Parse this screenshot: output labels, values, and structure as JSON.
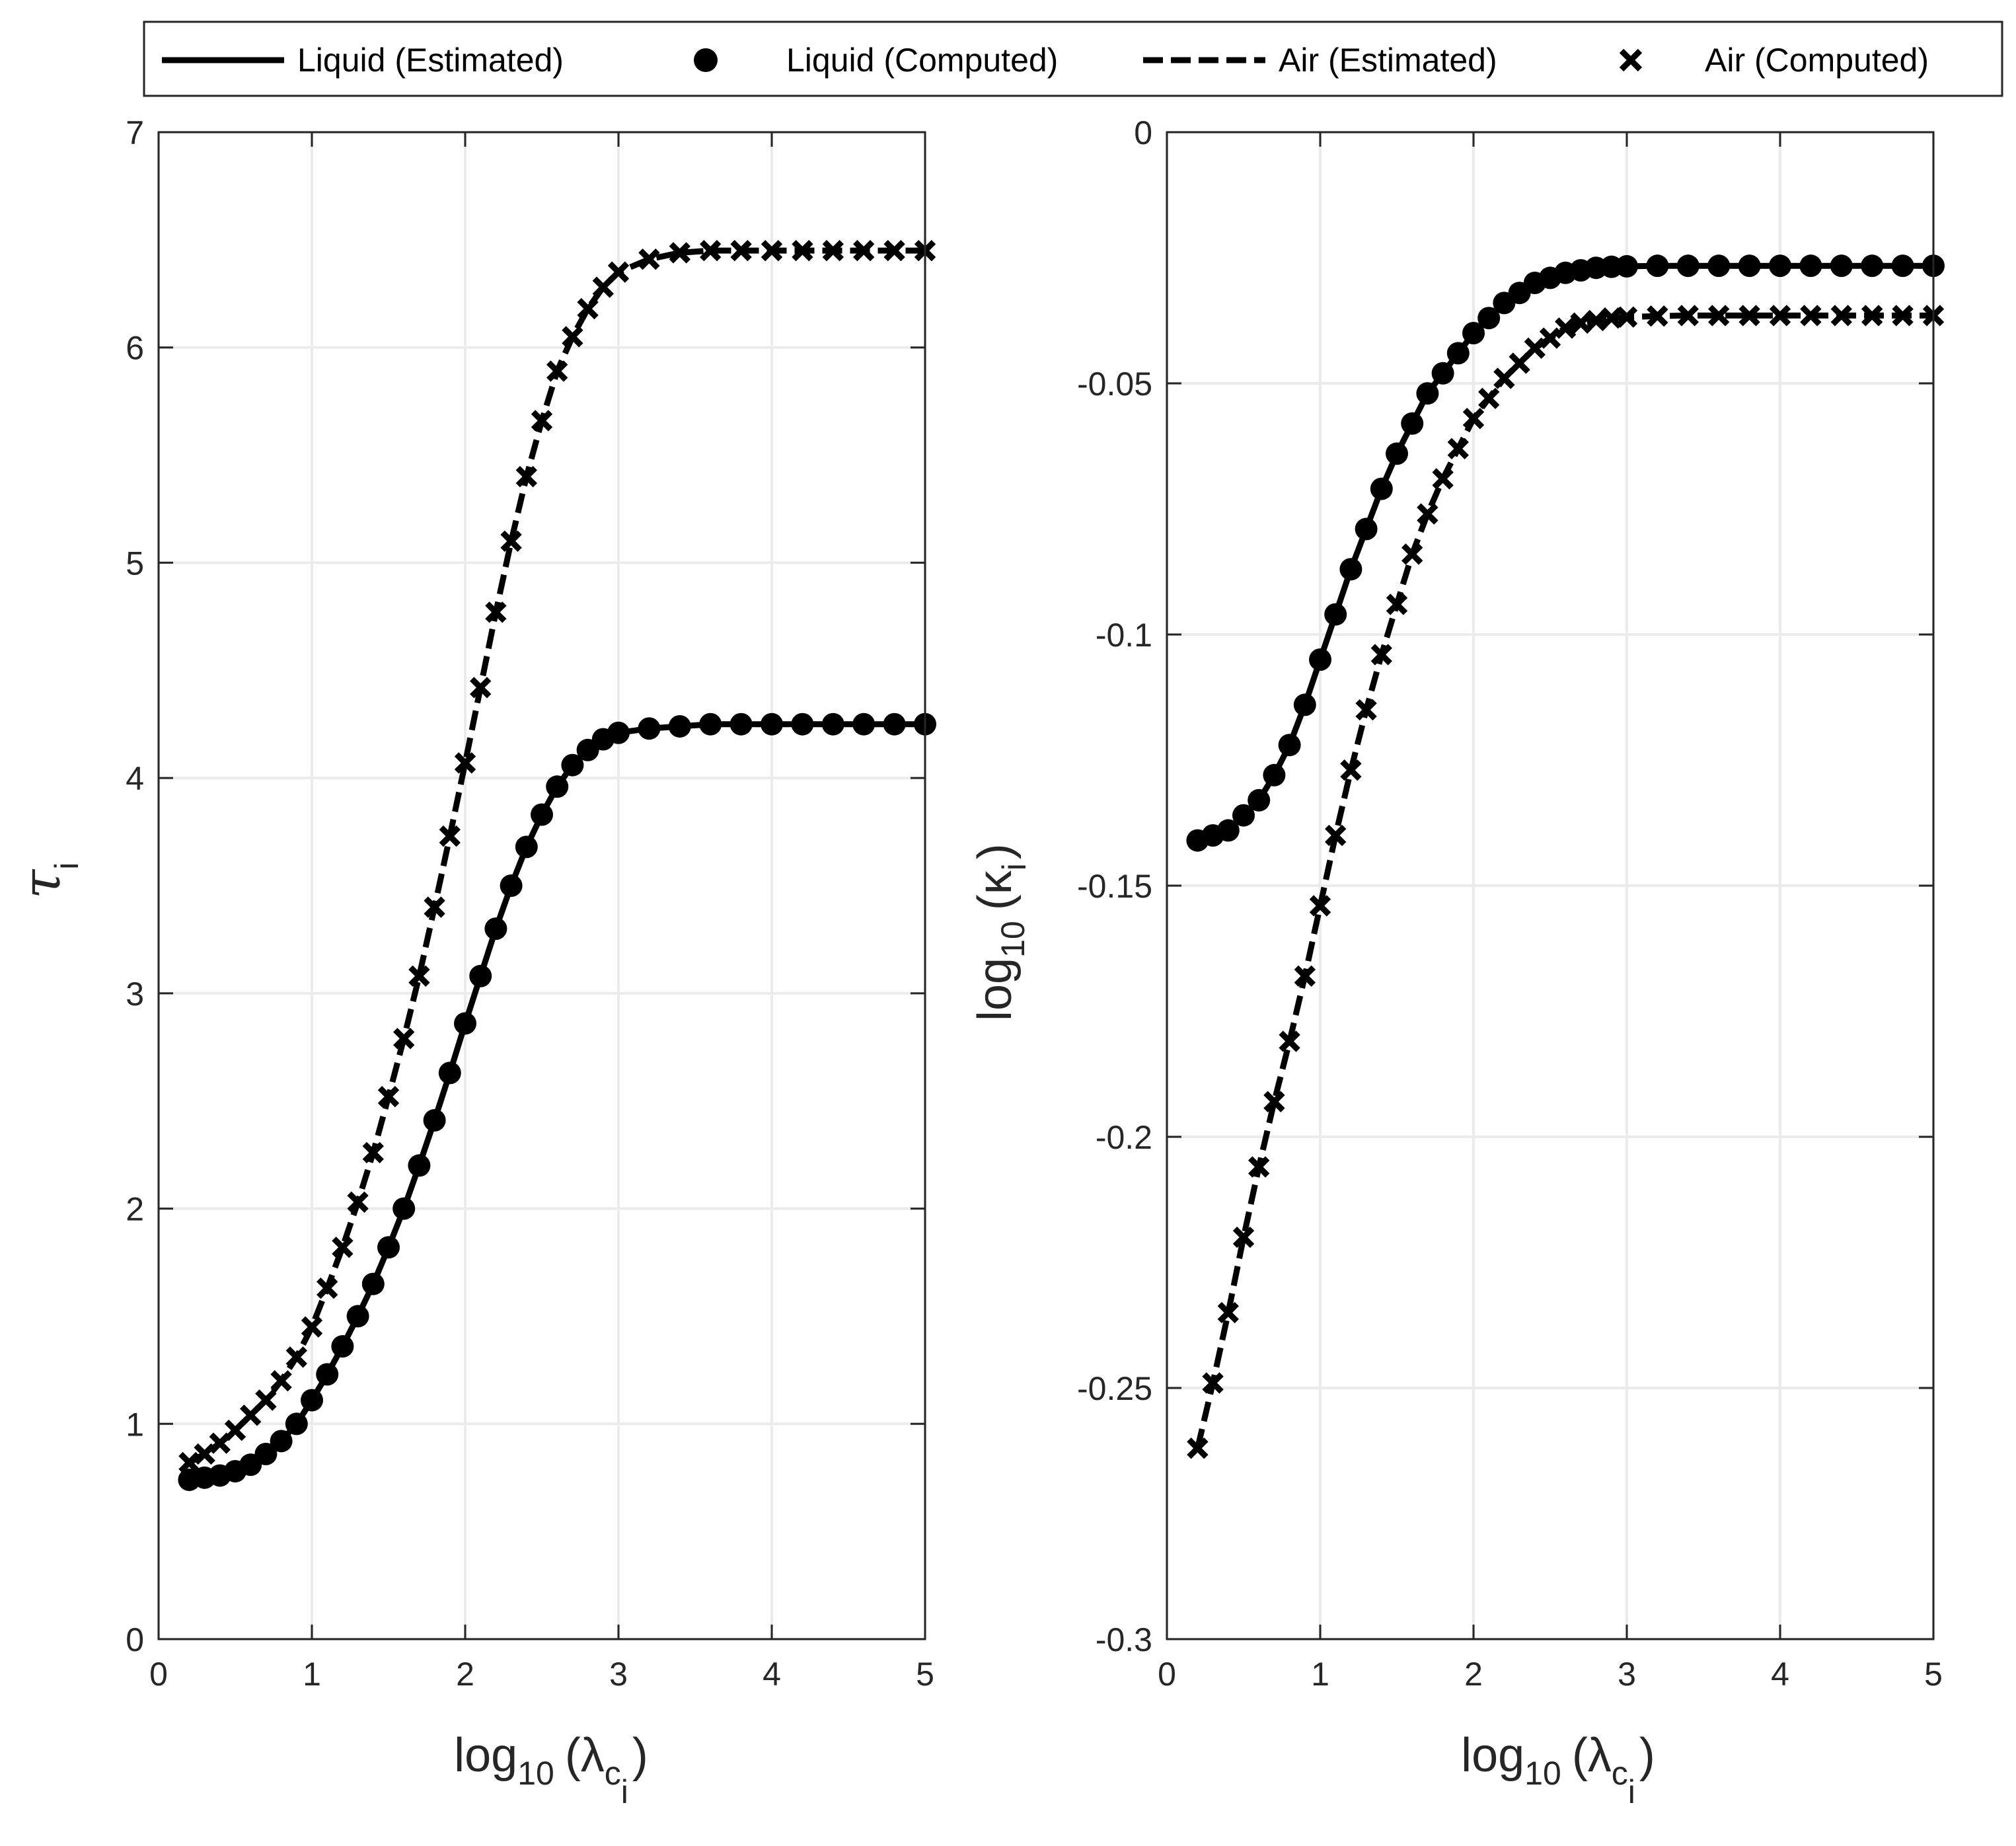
{
  "legend": {
    "entries": [
      {
        "label": "Liquid (Estimated)",
        "style": "solid-line"
      },
      {
        "label": "Liquid (Computed)",
        "style": "circle-marker"
      },
      {
        "label": "Air (Estimated)",
        "style": "dashed-line"
      },
      {
        "label": "Air (Computed)",
        "style": "x-marker"
      }
    ]
  },
  "colors": {
    "series": "#000000",
    "grid": "#ebebeb",
    "axis": "#262626"
  },
  "chart_data": [
    {
      "type": "line",
      "xlabel_main": "log",
      "xlabel_sub": "10",
      "xlabel_paren": "(λ",
      "xlabel_c": "c",
      "xlabel_i": "i",
      "xlabel_close": ")",
      "ylabel_main": "τ",
      "ylabel_sub": "i",
      "xlim": [
        0,
        5
      ],
      "ylim": [
        0,
        7
      ],
      "xticks": [
        0,
        1,
        2,
        3,
        4,
        5
      ],
      "yticks": [
        0,
        1,
        2,
        3,
        4,
        5,
        6,
        7
      ],
      "xtick_labels": [
        "0",
        "1",
        "2",
        "3",
        "4",
        "5"
      ],
      "ytick_labels": [
        "0",
        "1",
        "2",
        "3",
        "4",
        "5",
        "6",
        "7"
      ],
      "grid": true,
      "series": [
        {
          "name": "Liquid",
          "line": "solid",
          "marker": "circle",
          "x": [
            0.2,
            0.3,
            0.4,
            0.5,
            0.6,
            0.7,
            0.8,
            0.9,
            1.0,
            1.1,
            1.2,
            1.3,
            1.4,
            1.5,
            1.6,
            1.7,
            1.8,
            1.9,
            2.0,
            2.1,
            2.2,
            2.3,
            2.4,
            2.5,
            2.6,
            2.7,
            2.8,
            2.9,
            3.0,
            3.2,
            3.4,
            3.6,
            3.8,
            4.0,
            4.2,
            4.4,
            4.6,
            4.8,
            5.0
          ],
          "y": [
            0.74,
            0.75,
            0.76,
            0.78,
            0.81,
            0.86,
            0.92,
            1.0,
            1.11,
            1.23,
            1.36,
            1.5,
            1.65,
            1.82,
            2.0,
            2.2,
            2.41,
            2.63,
            2.86,
            3.08,
            3.3,
            3.5,
            3.68,
            3.83,
            3.96,
            4.06,
            4.13,
            4.18,
            4.21,
            4.23,
            4.24,
            4.25,
            4.25,
            4.25,
            4.25,
            4.25,
            4.25,
            4.25,
            4.25
          ]
        },
        {
          "name": "Air",
          "line": "dashed",
          "marker": "x",
          "x": [
            0.2,
            0.3,
            0.4,
            0.5,
            0.6,
            0.7,
            0.8,
            0.9,
            1.0,
            1.1,
            1.2,
            1.3,
            1.4,
            1.5,
            1.6,
            1.7,
            1.8,
            1.9,
            2.0,
            2.1,
            2.2,
            2.3,
            2.4,
            2.5,
            2.6,
            2.7,
            2.8,
            2.9,
            3.0,
            3.2,
            3.4,
            3.6,
            3.8,
            4.0,
            4.2,
            4.4,
            4.6,
            4.8,
            5.0
          ],
          "y": [
            0.82,
            0.86,
            0.91,
            0.97,
            1.04,
            1.11,
            1.2,
            1.31,
            1.45,
            1.63,
            1.82,
            2.03,
            2.26,
            2.52,
            2.79,
            3.08,
            3.4,
            3.73,
            4.07,
            4.42,
            4.77,
            5.1,
            5.4,
            5.66,
            5.89,
            6.05,
            6.18,
            6.28,
            6.35,
            6.41,
            6.44,
            6.45,
            6.45,
            6.45,
            6.45,
            6.45,
            6.45,
            6.45,
            6.45
          ]
        }
      ]
    },
    {
      "type": "line",
      "xlabel_main": "log",
      "xlabel_sub": "10",
      "xlabel_paren": "(λ",
      "xlabel_c": "c",
      "xlabel_i": "i",
      "xlabel_close": ")",
      "ylabel_main": "log",
      "ylabel_sub": "10",
      "ylabel_paren": "(κ",
      "ylabel_i": "i",
      "ylabel_close": ")",
      "xlim": [
        0,
        5
      ],
      "ylim": [
        -0.3,
        0
      ],
      "xticks": [
        0,
        1,
        2,
        3,
        4,
        5
      ],
      "yticks": [
        -0.3,
        -0.25,
        -0.2,
        -0.15,
        -0.1,
        -0.05,
        0
      ],
      "xtick_labels": [
        "0",
        "1",
        "2",
        "3",
        "4",
        "5"
      ],
      "ytick_labels": [
        "-0.3",
        "-0.25",
        "-0.2",
        "-0.15",
        "-0.1",
        "-0.05",
        "0"
      ],
      "grid": true,
      "series": [
        {
          "name": "Liquid",
          "line": "solid",
          "marker": "circle",
          "x": [
            0.2,
            0.3,
            0.4,
            0.5,
            0.6,
            0.7,
            0.8,
            0.9,
            1.0,
            1.1,
            1.2,
            1.3,
            1.4,
            1.5,
            1.6,
            1.7,
            1.8,
            1.9,
            2.0,
            2.1,
            2.2,
            2.3,
            2.4,
            2.5,
            2.6,
            2.7,
            2.8,
            2.9,
            3.0,
            3.2,
            3.4,
            3.6,
            3.8,
            4.0,
            4.2,
            4.4,
            4.6,
            4.8,
            5.0
          ],
          "y": [
            -0.141,
            -0.14,
            -0.139,
            -0.136,
            -0.133,
            -0.128,
            -0.122,
            -0.114,
            -0.105,
            -0.096,
            -0.087,
            -0.079,
            -0.071,
            -0.064,
            -0.058,
            -0.052,
            -0.048,
            -0.044,
            -0.04,
            -0.037,
            -0.034,
            -0.032,
            -0.03,
            -0.029,
            -0.028,
            -0.0275,
            -0.027,
            -0.0268,
            -0.0267,
            -0.0266,
            -0.0266,
            -0.0266,
            -0.0266,
            -0.0266,
            -0.0266,
            -0.0266,
            -0.0266,
            -0.0266,
            -0.0266
          ]
        },
        {
          "name": "Air",
          "line": "dashed",
          "marker": "x",
          "x": [
            0.2,
            0.3,
            0.4,
            0.5,
            0.6,
            0.7,
            0.8,
            0.9,
            1.0,
            1.1,
            1.2,
            1.3,
            1.4,
            1.5,
            1.6,
            1.7,
            1.8,
            1.9,
            2.0,
            2.1,
            2.2,
            2.3,
            2.4,
            2.5,
            2.6,
            2.7,
            2.8,
            2.9,
            3.0,
            3.2,
            3.4,
            3.6,
            3.8,
            4.0,
            4.2,
            4.4,
            4.6,
            4.8,
            5.0
          ],
          "y": [
            -0.262,
            -0.249,
            -0.235,
            -0.22,
            -0.206,
            -0.193,
            -0.181,
            -0.168,
            -0.154,
            -0.14,
            -0.127,
            -0.115,
            -0.104,
            -0.094,
            -0.084,
            -0.076,
            -0.069,
            -0.063,
            -0.057,
            -0.053,
            -0.049,
            -0.046,
            -0.043,
            -0.041,
            -0.039,
            -0.038,
            -0.0375,
            -0.037,
            -0.0368,
            -0.0366,
            -0.0365,
            -0.0365,
            -0.0365,
            -0.0365,
            -0.0365,
            -0.0365,
            -0.0365,
            -0.0365,
            -0.0365
          ]
        }
      ]
    }
  ]
}
